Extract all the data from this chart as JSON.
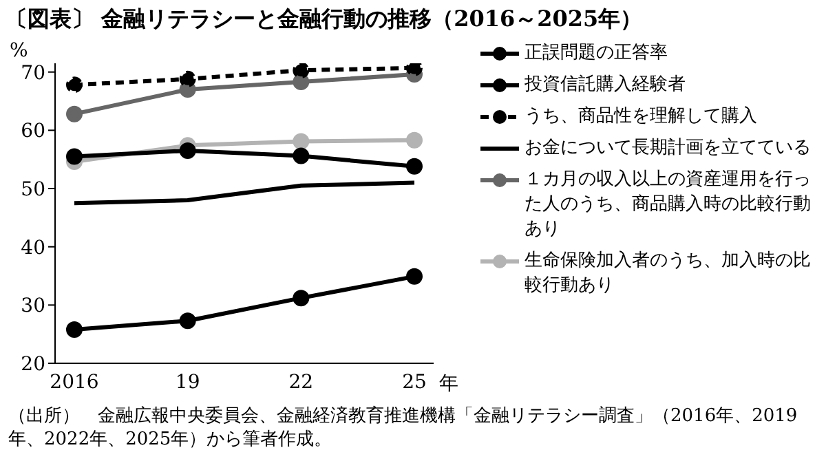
{
  "chart_data": {
    "type": "line",
    "title": "〔図表〕 金融リテラシーと金融行動の推移（2016～2025年）",
    "ylabel": "%",
    "xlabel": "年",
    "categories": [
      "2016",
      "19",
      "22",
      "25"
    ],
    "ylim": [
      20,
      71.5
    ],
    "yticks": [
      20,
      30,
      40,
      50,
      60,
      70
    ],
    "series": [
      {
        "name": "正誤問題の正答率",
        "color": "#000000",
        "values": [
          55.5,
          56.5,
          55.6,
          53.8
        ]
      },
      {
        "name": "投資信託購入経験者",
        "color": "#000000",
        "values": [
          25.8,
          27.3,
          31.2,
          34.9
        ]
      },
      {
        "name": "うち、商品性を理解して購入",
        "color": "#000000",
        "values": [
          67.8,
          68.8,
          70.3,
          70.7
        ],
        "line_style": "dashed"
      },
      {
        "name": "お金について長期計画を立てている",
        "color": "#000000",
        "values": [
          47.5,
          48.0,
          50.5,
          51.0
        ],
        "marker": "none"
      },
      {
        "name": "１カ月の収入以上の資産運用を行った人のうち、商品購入時の比較行動あり",
        "color": "#666666",
        "values": [
          62.8,
          67.0,
          68.3,
          69.6
        ]
      },
      {
        "name": "生命保険加入者のうち、加入時の比較行動あり",
        "color": "#b3b3b3",
        "values": [
          54.6,
          57.4,
          58.1,
          58.3
        ]
      }
    ],
    "grid": false,
    "legend": "right",
    "marker": "circle",
    "line_style": "solid",
    "annotations": [
      "（出所）　金融広報中央委員会、金融経済教育推進機構「金融リテラシー調査」（2016年、2019年、2022年、2025年）から筆者作成。"
    ]
  }
}
